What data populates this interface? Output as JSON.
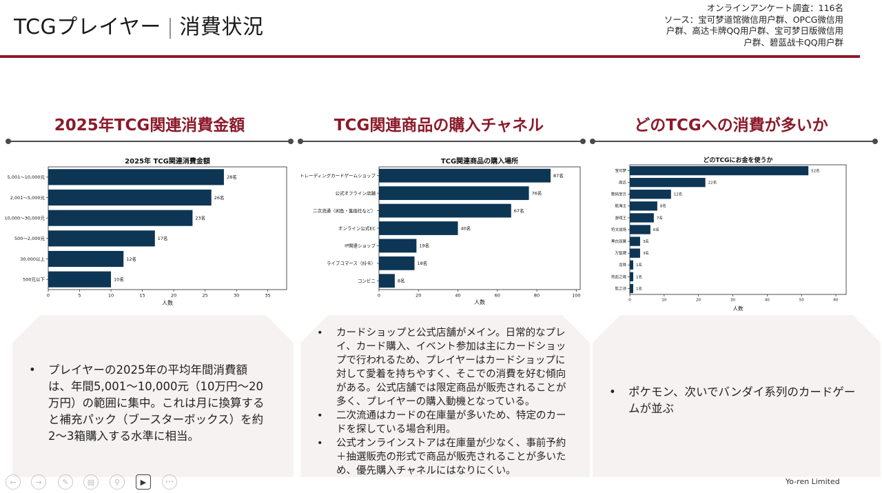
{
  "header": {
    "title_main": "TCGプレイヤー",
    "title_sep": "|",
    "title_sub": "消費状況",
    "source_lines": [
      "オンラインアンケート調査：116名",
      "ソース：宝可梦道馆微信用户群、OPCG微信用",
      "户群、高达卡牌QQ用户群、宝可梦日版微信用",
      "户群、碧蓝战卡QQ用户群"
    ]
  },
  "sections": [
    {
      "title": "2025年TCG関連消費金額"
    },
    {
      "title": "TCG関連商品の購入チャネル"
    },
    {
      "title": "どのTCGへの消費が多いか"
    }
  ],
  "chart_data": [
    {
      "type": "bar",
      "orientation": "horizontal",
      "title": "2025年 TCG関連消費金額",
      "categories": [
        "5,001～10,000元",
        "2,001～5,000元",
        "10,000～30,000元",
        "500～2,000元",
        "30,000以上",
        "500元以下"
      ],
      "values": [
        28,
        26,
        23,
        17,
        12,
        10
      ],
      "data_labels": [
        "28名",
        "26名",
        "23名",
        "17名",
        "12名",
        "10名"
      ],
      "xlabel": "人数",
      "xlim": [
        0,
        38
      ],
      "xticks": [
        0,
        5,
        10,
        15,
        20,
        25,
        30,
        35
      ],
      "color": "#0d3655"
    },
    {
      "type": "bar",
      "orientation": "horizontal",
      "title": "TCG関連商品の購入場所",
      "categories": [
        "トレーディングカードゲームショップ",
        "公式オフライン店舗",
        "二次流通（闲鱼・集換社など）",
        "オンライン公式EC",
        "IP関連ショップ",
        "ライブコマース（抖卡）",
        "コンビニ"
      ],
      "values": [
        87,
        76,
        67,
        40,
        19,
        18,
        8
      ],
      "data_labels": [
        "87名",
        "76名",
        "67名",
        "40名",
        "19名",
        "18名",
        "8名"
      ],
      "xlabel": "人数",
      "xlim": [
        0,
        102
      ],
      "xticks": [
        0,
        20,
        40,
        60,
        80,
        100
      ],
      "color": "#0d3655"
    },
    {
      "type": "bar",
      "orientation": "horizontal",
      "title": "どのTCGにお金を使うか",
      "categories": [
        "宝可梦",
        "高达",
        "数码宝贝",
        "航海王",
        "游戏王",
        "符文战场",
        "黑白双翼",
        "万智牌",
        "龙珠",
        "热血之境",
        "影之诗"
      ],
      "values": [
        52,
        22,
        12,
        8,
        7,
        6,
        3,
        3,
        1,
        1,
        1
      ],
      "data_labels": [
        "52名",
        "22名",
        "12名",
        "8名",
        "7名",
        "6名",
        "3名",
        "3名",
        "1名",
        "1名",
        "1名"
      ],
      "xlabel": "人数",
      "xlim": [
        0,
        63
      ],
      "xticks": [
        0,
        10,
        20,
        30,
        40,
        50,
        60
      ],
      "color": "#0d3655"
    }
  ],
  "panels": [
    {
      "bullets": [
        "プレイヤーの2025年の平均年間消費額は、年間5,001～10,000元（10万円～20万円）の範囲に集中。これは月に換算すると補充パック（ブースターボックス）を約2～3箱購入する水準に相当。"
      ]
    },
    {
      "bullets": [
        "カードショップと公式店舗がメイン。日常的なプレイ、カード購入、イベント参加は主にカードショップで行われるため、プレイヤーはカードショップに対して愛着を持ちやすく、そこでの消費を好む傾向がある。公式店舗では限定商品が販売されることが多く、プレイヤーの購入動機となっている。",
        "二次流通はカードの在庫量が多いため、特定のカードを探している場合利用。",
        "公式オンラインストアは在庫量が少なく、事前予約＋抽選販売の形式で商品が販売されることが多いため、優先購入チャネルにはなりにくい。"
      ]
    },
    {
      "bullets": [
        "ポケモン、次いでバンダイ系列のカードゲームが並ぶ"
      ]
    }
  ],
  "footer": {
    "company": "Yo-ren Limited"
  },
  "toolbar": [
    {
      "name": "prev-slide-button",
      "icon": "arrow-left-icon",
      "glyph": "←"
    },
    {
      "name": "next-slide-button",
      "icon": "arrow-right-icon",
      "glyph": "→"
    },
    {
      "name": "pen-tool-button",
      "icon": "pen-icon",
      "glyph": "✎"
    },
    {
      "name": "slides-overview-button",
      "icon": "slides-icon",
      "glyph": "▤"
    },
    {
      "name": "zoom-button",
      "icon": "magnifier-icon",
      "glyph": "⚲"
    },
    {
      "name": "camera-button",
      "icon": "camera-icon",
      "glyph": "▶"
    },
    {
      "name": "more-options-button",
      "icon": "more-icon",
      "glyph": "•••"
    }
  ]
}
